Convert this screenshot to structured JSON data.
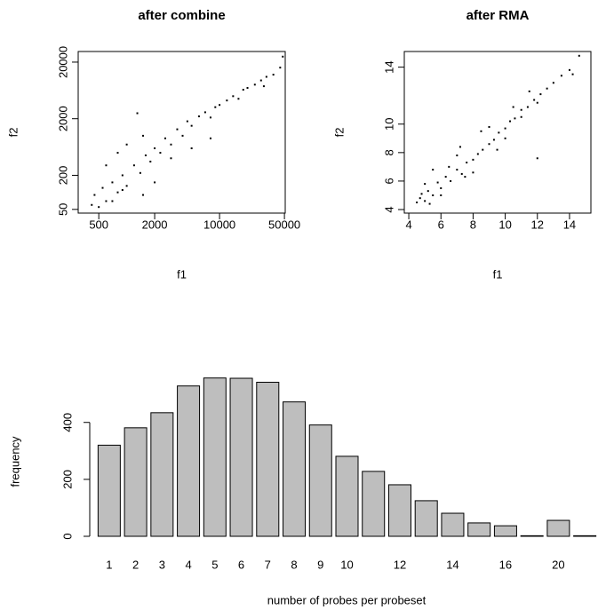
{
  "chart_data": [
    {
      "type": "scatter",
      "title": "after combine",
      "xlabel": "f1",
      "ylabel": "f2",
      "xscale": "log",
      "yscale": "log",
      "color": "#000000",
      "xlim": [
        300,
        51000
      ],
      "ylim": [
        43,
        30800
      ],
      "xticks": [
        500,
        2000,
        10000,
        50000
      ],
      "yticks": [
        50,
        200,
        2000,
        20000
      ],
      "x": [
        420,
        450,
        500,
        550,
        600,
        700,
        800,
        900,
        1000,
        1200,
        1400,
        1600,
        1800,
        2000,
        2300,
        2600,
        3000,
        3500,
        4000,
        4500,
        5000,
        6000,
        7000,
        8000,
        9000,
        10000,
        12000,
        14000,
        16000,
        18000,
        20000,
        24000,
        28000,
        32000,
        38000,
        45000,
        48000,
        600,
        800,
        1000,
        1500,
        2000,
        3000,
        700,
        900,
        1300,
        5000,
        8000,
        1500,
        30000
      ],
      "y": [
        60,
        90,
        55,
        120,
        70,
        150,
        100,
        200,
        130,
        300,
        220,
        450,
        350,
        600,
        500,
        900,
        700,
        1300,
        1000,
        1800,
        1500,
        2200,
        2600,
        2100,
        3200,
        3500,
        4200,
        5000,
        4500,
        6500,
        7000,
        8000,
        9500,
        11000,
        12000,
        16000,
        25000,
        300,
        500,
        700,
        1000,
        150,
        400,
        70,
        110,
        2500,
        600,
        900,
        90,
        7500
      ]
    },
    {
      "type": "scatter",
      "title": "after RMA",
      "xlabel": "f1",
      "ylabel": "f2",
      "xscale": "linear",
      "yscale": "linear",
      "color": "#000000",
      "xlim": [
        3.72,
        15.33
      ],
      "ylim": [
        3.75,
        15.1
      ],
      "xticks": [
        4,
        6,
        8,
        10,
        12,
        14
      ],
      "yticks": [
        4,
        6,
        8,
        10,
        14
      ],
      "x": [
        4.5,
        4.7,
        5.0,
        5.2,
        5.5,
        5.8,
        6.0,
        6.3,
        6.6,
        7.0,
        7.3,
        7.6,
        8.0,
        8.3,
        8.6,
        9.0,
        9.3,
        9.6,
        10.0,
        10.3,
        10.6,
        11.0,
        11.4,
        11.8,
        12.2,
        12.6,
        13.0,
        13.5,
        14.0,
        14.6,
        5.0,
        6.0,
        7.0,
        8.0,
        9.0,
        10.0,
        11.0,
        12.0,
        5.5,
        7.5,
        9.5,
        6.5,
        8.5,
        10.5,
        11.5,
        4.8,
        5.3,
        7.2,
        12.0,
        14.2
      ],
      "y": [
        4.5,
        4.8,
        4.6,
        5.3,
        5.0,
        5.9,
        5.5,
        6.3,
        6.0,
        6.8,
        6.5,
        7.3,
        7.5,
        7.9,
        8.2,
        8.6,
        8.9,
        9.4,
        9.7,
        10.2,
        10.4,
        11.0,
        11.2,
        11.7,
        12.1,
        12.5,
        12.9,
        13.4,
        13.8,
        14.8,
        5.8,
        5.0,
        7.8,
        6.6,
        9.8,
        9.0,
        10.5,
        7.6,
        6.8,
        6.3,
        8.2,
        7.0,
        9.5,
        11.2,
        12.3,
        5.1,
        4.4,
        8.4,
        11.5,
        13.5
      ]
    },
    {
      "type": "bar",
      "xlabel": "number of probes per probeset",
      "ylabel": "frequency",
      "color": "#bebebe",
      "categories": [
        "1",
        "2",
        "3",
        "4",
        "5",
        "6",
        "7",
        "8",
        "9",
        "10",
        null,
        "12",
        null,
        "14",
        null,
        "16",
        null,
        "20",
        null
      ],
      "values": [
        320,
        381,
        434,
        528,
        556,
        555,
        541,
        472,
        391,
        281,
        228,
        181,
        125,
        81,
        47,
        37,
        2,
        56,
        2
      ],
      "ylim": [
        0,
        580
      ],
      "yticks": [
        0,
        200,
        400
      ]
    }
  ]
}
